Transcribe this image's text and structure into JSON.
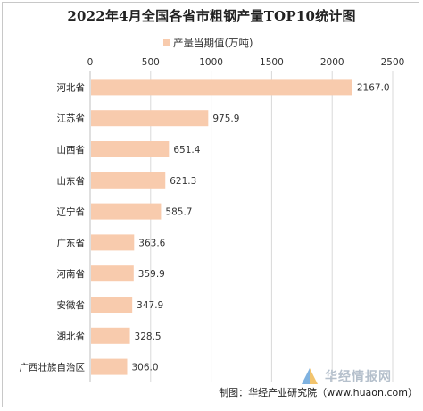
{
  "title": "2022年4月全国各省市粗钢产量TOP10统计图",
  "legend_label": "产量当期值(万吨)",
  "source": "制图：华经产业研究院（www.huaon.com）",
  "watermark": "华经情报网",
  "colors": {
    "bar": "#F8CBAD",
    "grid": "#d9d9d9"
  },
  "chart_data": {
    "type": "bar",
    "orientation": "horizontal",
    "title": "2022年4月全国各省市粗钢产量TOP10统计图",
    "legend_position": "top",
    "grid": true,
    "xlim": [
      0,
      2500
    ],
    "xticks": [
      0,
      500,
      1000,
      1500,
      2000,
      2500
    ],
    "categories": [
      "河北省",
      "江苏省",
      "山西省",
      "山东省",
      "辽宁省",
      "广东省",
      "河南省",
      "安徽省",
      "湖北省",
      "广西壮族自治区"
    ],
    "series": [
      {
        "name": "产量当期值(万吨)",
        "values": [
          2167.0,
          975.9,
          651.4,
          621.3,
          585.7,
          363.6,
          359.9,
          347.9,
          328.5,
          306.0
        ],
        "labels": [
          "2167.0",
          "975.9",
          "651.4",
          "621.3",
          "585.7",
          "363.6",
          "359.9",
          "347.9",
          "328.5",
          "306.0"
        ]
      }
    ]
  }
}
